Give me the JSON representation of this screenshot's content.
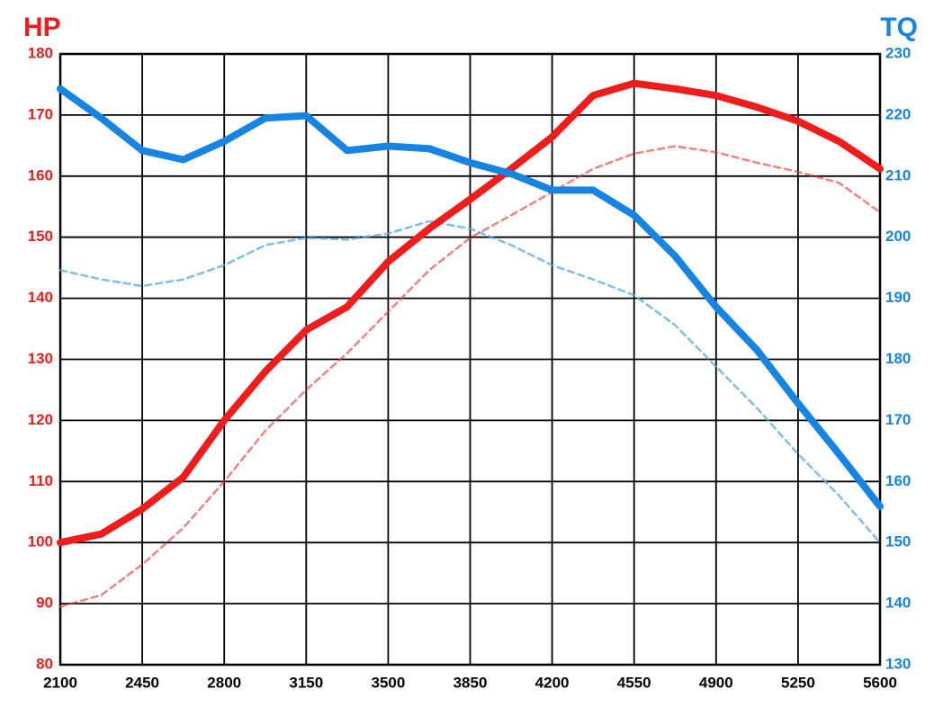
{
  "chart_data": {
    "type": "line",
    "ylabel": "HP",
    "y2label": "TQ",
    "x": [
      2100,
      2275,
      2450,
      2625,
      2800,
      2975,
      3150,
      3325,
      3500,
      3675,
      3850,
      4025,
      4200,
      4375,
      4550,
      4725,
      4900,
      5075,
      5250,
      5425,
      5600
    ],
    "series": [
      {
        "color": "#e8413c",
        "dashed": true,
        "opacity": 0.65,
        "width": 2.5,
        "values": [
          89.5,
          91.4,
          96.4,
          102.4,
          110,
          118.3,
          125,
          131,
          137.8,
          144.6,
          149.9,
          153.6,
          157.4,
          161.2,
          163.7,
          164.9,
          163.9,
          162.2,
          160.7,
          158.9,
          154.1
        ]
      },
      {
        "color": "#5aa5e0",
        "dashed": true,
        "opacity": 0.75,
        "width": 2.5,
        "axis": "y2",
        "values": [
          194.6,
          193.1,
          192,
          193.1,
          195.4,
          198.7,
          199.9,
          199.6,
          200.6,
          202.6,
          201.4,
          198.7,
          195.4,
          193.1,
          190.5,
          185.6,
          178.8,
          172,
          164.5,
          157.7,
          150
        ]
      },
      {
        "color": "#ef1c1c",
        "dashed": false,
        "opacity": 1,
        "width": 8,
        "values": [
          100,
          101.4,
          105.5,
          110.7,
          120,
          128,
          134.8,
          138.6,
          146,
          151.4,
          156.2,
          161.2,
          166.4,
          173.2,
          175.2,
          174.3,
          173.2,
          171.3,
          169,
          165.7,
          161.2
        ]
      },
      {
        "color": "#1684e0",
        "dashed": false,
        "opacity": 1,
        "width": 8,
        "axis": "y2",
        "values": [
          224.3,
          219.5,
          214.2,
          212.7,
          215.7,
          219.5,
          219.9,
          214.2,
          214.9,
          214.5,
          212.2,
          210.4,
          207.7,
          207.7,
          203.6,
          196.9,
          188.6,
          181.5,
          172.8,
          164.5,
          155.9
        ]
      }
    ],
    "xlim": [
      2100,
      5600
    ],
    "xticks": [
      2100,
      2450,
      2800,
      3150,
      3500,
      3850,
      4200,
      4550,
      4900,
      5250,
      5600
    ],
    "ylim": [
      80,
      180
    ],
    "yticks": [
      80,
      90,
      100,
      110,
      120,
      130,
      140,
      150,
      160,
      170,
      180
    ],
    "y2lim": [
      130,
      230
    ],
    "y2ticks": [
      130,
      140,
      150,
      160,
      170,
      180,
      190,
      200,
      210,
      220,
      230
    ],
    "ycolor": "#ef1c1c",
    "y2color": "#1684e0",
    "grid": true
  }
}
